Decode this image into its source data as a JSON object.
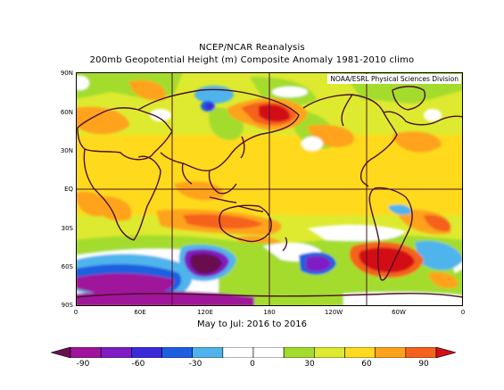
{
  "title": {
    "line1": "NCEP/NCAR Reanalysis",
    "line2": "200mb Geopotential Height (m) Composite Anomaly 1981-2010 climo"
  },
  "credit": "NOAA/ESRL Physical Sciences Division",
  "period": "May to Jul: 2016 to 2016",
  "lat_labels": [
    "90N",
    "60N",
    "30N",
    "EQ",
    "30S",
    "60S",
    "90S"
  ],
  "lon_labels": [
    "0",
    "60E",
    "120E",
    "180",
    "120W",
    "60W",
    "0"
  ],
  "colorbar": {
    "labels": [
      "-90",
      "-60",
      "-30",
      "0",
      "30",
      "60",
      "90"
    ],
    "colors": [
      "#6a0f4f",
      "#a0149b",
      "#7f1cc4",
      "#3a2ad9",
      "#1d5fe0",
      "#4fb4ec",
      "#ffffff",
      "#ffffff",
      "#a4dc2d",
      "#ddea2f",
      "#ffda1f",
      "#ffa31d",
      "#f5621c",
      "#d21016"
    ]
  },
  "anomaly_colors": {
    "deep_purple": "#6a0f4f",
    "purple": "#a0149b",
    "violet": "#7f1cc4",
    "blue": "#3a2ad9",
    "light_blue": "#4fb4ec",
    "white": "#ffffff",
    "green": "#a4dc2d",
    "yellow_green": "#ddea2f",
    "yellow": "#ffda1f",
    "orange": "#ffa31d",
    "dark_orange": "#f5621c",
    "red": "#d21016"
  }
}
